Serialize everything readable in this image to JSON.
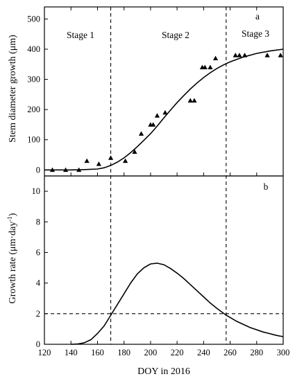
{
  "chart_data": [
    {
      "panel": "a",
      "type": "scatter",
      "panel_label": "a",
      "xlabel": "",
      "ylabel": "Stem diameter growth (μm)",
      "xlim": [
        120,
        300
      ],
      "ylim": [
        -20,
        540
      ],
      "yticks": [
        0,
        100,
        200,
        300,
        400,
        500
      ],
      "stage_boundaries": [
        170,
        257
      ],
      "stage_labels": [
        "Stage 1",
        "Stage 2",
        "Stage 3"
      ],
      "points": {
        "x": [
          126,
          136,
          146,
          152,
          161,
          170,
          181,
          188,
          193,
          200,
          202,
          205,
          211,
          230,
          233,
          239,
          241,
          245,
          249,
          264,
          267,
          271,
          288,
          298
        ],
        "y": [
          0,
          0,
          0,
          30,
          20,
          40,
          30,
          60,
          120,
          150,
          150,
          180,
          190,
          230,
          230,
          340,
          340,
          340,
          370,
          380,
          380,
          380,
          380,
          380
        ]
      },
      "fitted_curve": {
        "x": [
          120,
          130,
          140,
          150,
          160,
          165,
          170,
          175,
          180,
          185,
          190,
          195,
          200,
          205,
          210,
          215,
          220,
          225,
          230,
          235,
          240,
          245,
          250,
          255,
          260,
          270,
          280,
          290,
          300
        ],
        "y": [
          0,
          0,
          0,
          1,
          3,
          7,
          15,
          26,
          40,
          57,
          77,
          98,
          120,
          145,
          172,
          198,
          223,
          246,
          268,
          288,
          306,
          322,
          336,
          348,
          358,
          374,
          386,
          394,
          400
        ]
      }
    },
    {
      "panel": "b",
      "type": "line",
      "panel_label": "b",
      "xlabel": "DOY in 2016",
      "ylabel": "Growth rate (μm·day",
      "ylabel_sup": "-1",
      "ylabel_close": ")",
      "xlim": [
        120,
        300
      ],
      "ylim": [
        0,
        11
      ],
      "xticks": [
        120,
        140,
        160,
        180,
        200,
        220,
        240,
        260,
        280,
        300
      ],
      "yticks": [
        0,
        2,
        4,
        6,
        8,
        10
      ],
      "threshold": 2,
      "stage_boundaries": [
        170,
        257
      ],
      "series": [
        {
          "x": [
            140,
            145,
            150,
            155,
            160,
            165,
            170,
            175,
            180,
            185,
            190,
            195,
            200,
            205,
            210,
            215,
            220,
            225,
            230,
            235,
            240,
            245,
            250,
            257,
            265,
            275,
            285,
            295,
            300
          ],
          "y": [
            0,
            0.02,
            0.1,
            0.3,
            0.7,
            1.2,
            1.9,
            2.6,
            3.3,
            4.0,
            4.6,
            5.0,
            5.25,
            5.3,
            5.2,
            4.95,
            4.65,
            4.3,
            3.9,
            3.5,
            3.1,
            2.7,
            2.35,
            1.9,
            1.5,
            1.1,
            0.8,
            0.58,
            0.5
          ]
        }
      ]
    }
  ]
}
